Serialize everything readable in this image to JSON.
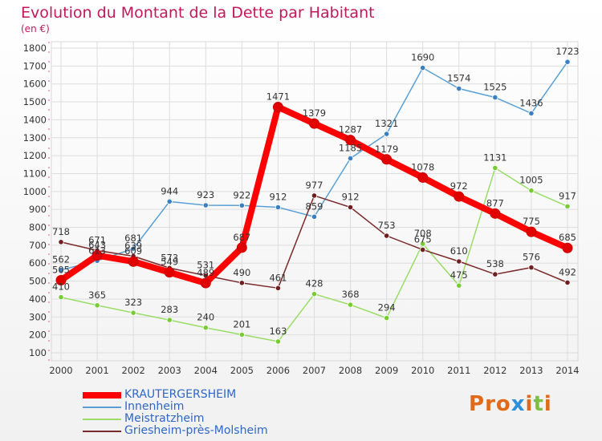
{
  "title": "Evolution du Montant de la Dette par Habitant",
  "subtitle": "(en €)",
  "logo": "Proxiti",
  "chart_data": {
    "type": "line",
    "x": [
      "2000",
      "2001",
      "2002",
      "2003",
      "2004",
      "2005",
      "2006",
      "2007",
      "2008",
      "2009",
      "2010",
      "2011",
      "2012",
      "2013",
      "2014"
    ],
    "ylim": [
      100,
      1800
    ],
    "yticks": [
      100,
      200,
      300,
      400,
      500,
      600,
      700,
      800,
      900,
      1000,
      1100,
      1200,
      1300,
      1400,
      1500,
      1600,
      1700,
      1800
    ],
    "grid": true,
    "legend_position": "bottom-left",
    "series": [
      {
        "name": "KRAUTERGERSHEIM",
        "color": "#ff0000",
        "marker_color": "#e00000",
        "values": [
          505,
          643,
          609,
          549,
          489,
          687,
          1471,
          1379,
          1287,
          1179,
          1078,
          972,
          877,
          775,
          685
        ]
      },
      {
        "name": "Innenheim",
        "color": "#5a9fd4",
        "marker_color": "#3c7fc0",
        "values": [
          562,
          613,
          681,
          944,
          923,
          922,
          912,
          859,
          1185,
          1321,
          1690,
          1574,
          1525,
          1436,
          1723
        ]
      },
      {
        "name": "Meistratzheim",
        "color": "#99dd66",
        "marker_color": "#77cc33",
        "values": [
          410,
          365,
          323,
          283,
          240,
          201,
          163,
          428,
          368,
          294,
          708,
          475,
          1131,
          1005,
          917
        ]
      },
      {
        "name": "Griesheim-près-Molsheim",
        "color": "#7a2a2a",
        "marker_color": "#6e1f1f",
        "values": [
          718,
          671,
          639,
          573,
          531,
          490,
          461,
          977,
          912,
          753,
          675,
          610,
          538,
          576,
          492
        ]
      }
    ]
  },
  "logo_colors": [
    "#e06a1a",
    "#e06a1a",
    "#e06a1a",
    "#2f8fd8",
    "#e06a1a",
    "#7bc043",
    "#e06a1a"
  ]
}
